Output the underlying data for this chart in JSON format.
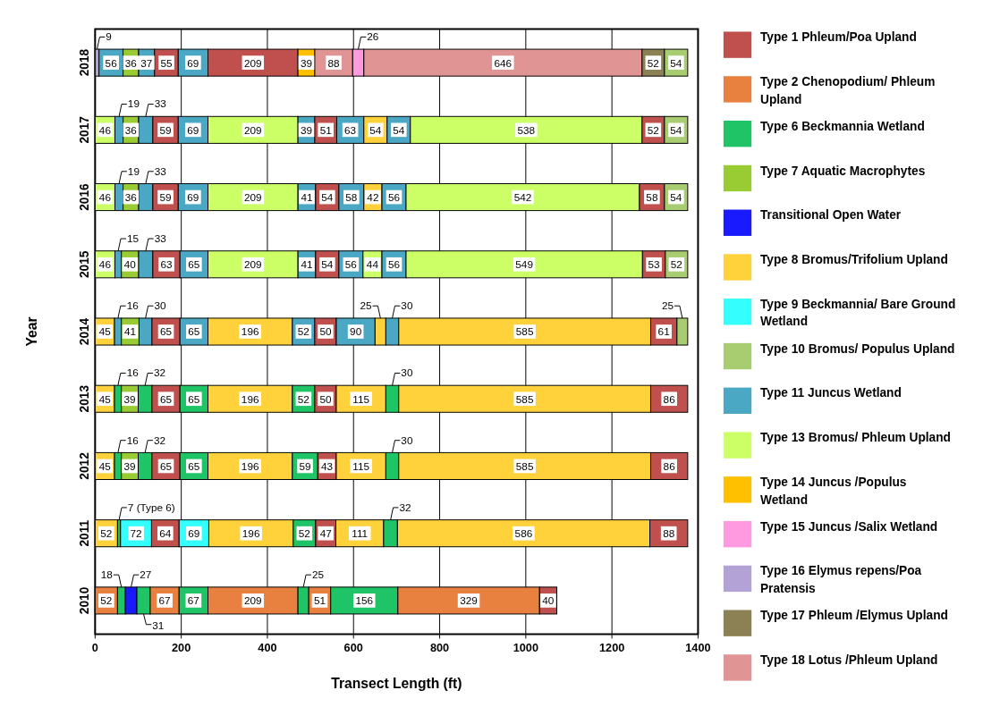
{
  "chart_data": {
    "type": "bar",
    "orientation": "horizontal",
    "xlabel": "Transect Length (ft)",
    "ylabel": "Year",
    "categories": [
      "2018",
      "2017",
      "2016",
      "2015",
      "2014",
      "2013",
      "2012",
      "2011",
      "2010"
    ],
    "xlim": [
      0,
      1400
    ],
    "xticks": [
      0,
      200,
      400,
      600,
      800,
      1000,
      1200,
      1400
    ],
    "grid": "x",
    "legend": "right",
    "data_labels": true,
    "series": [
      {
        "name": "Type 1 Phleum/Poa Upland",
        "color": "#c0504d",
        "values": [
          55,
          59,
          59,
          63,
          65,
          65,
          65,
          64,
          40
        ],
        "base": [
          138,
          134,
          134,
          134,
          132,
          132,
          132,
          131,
          1032
        ]
      },
      {
        "color": "#c0504d",
        "values": [
          209,
          51,
          54,
          54,
          50,
          50,
          43,
          47,
          null
        ],
        "base": [
          262,
          510,
          512,
          512,
          510,
          510,
          517,
          512,
          null
        ]
      },
      {
        "color": "#c0504d",
        "values": [
          null,
          52,
          58,
          53,
          61,
          86,
          86,
          88,
          null
        ],
        "base": [
          null,
          1270,
          1264,
          1271,
          1290,
          1290,
          1290,
          1288,
          null
        ]
      },
      {
        "name": "Type 2 Chenopodium/ Phleum Upland",
        "color": "#e8803f",
        "values": [
          null,
          null,
          null,
          null,
          null,
          null,
          null,
          null,
          52
        ],
        "base": [
          null,
          null,
          null,
          null,
          null,
          null,
          null,
          null,
          0
        ]
      },
      {
        "color": "#e8803f",
        "values": [
          null,
          null,
          null,
          null,
          null,
          null,
          null,
          null,
          67
        ],
        "base": [
          null,
          null,
          null,
          null,
          null,
          null,
          null,
          null,
          128
        ]
      },
      {
        "color": "#e8803f",
        "values": [
          null,
          null,
          null,
          null,
          null,
          null,
          null,
          null,
          209
        ],
        "base": [
          null,
          null,
          null,
          null,
          null,
          null,
          null,
          null,
          262
        ]
      },
      {
        "color": "#e8803f",
        "values": [
          null,
          null,
          null,
          null,
          null,
          null,
          null,
          null,
          51
        ],
        "base": [
          null,
          null,
          null,
          null,
          null,
          null,
          null,
          null,
          496
        ]
      },
      {
        "color": "#e8803f",
        "values": [
          null,
          null,
          null,
          null,
          null,
          null,
          null,
          null,
          329
        ],
        "base": [
          null,
          null,
          null,
          null,
          null,
          null,
          null,
          null,
          703
        ]
      },
      {
        "name": "Type 6 Beckmannia Wetland",
        "color": "#1fc467",
        "values": [
          null,
          null,
          null,
          null,
          null,
          16,
          16,
          7,
          18
        ],
        "base": [
          null,
          null,
          null,
          null,
          null,
          45,
          45,
          52,
          52
        ],
        "value_labels": [
          null,
          null,
          null,
          null,
          null,
          "16",
          "16",
          "7 (Type 6)",
          "18"
        ]
      },
      {
        "color": "#1fc467",
        "values": [
          null,
          null,
          null,
          null,
          null,
          32,
          32,
          52,
          31
        ],
        "base": [
          null,
          null,
          null,
          null,
          null,
          100,
          100,
          460,
          97
        ]
      },
      {
        "color": "#1fc467",
        "values": [
          null,
          null,
          null,
          null,
          null,
          65,
          65,
          32,
          67
        ],
        "base": [
          null,
          null,
          null,
          null,
          null,
          197,
          197,
          670,
          195
        ]
      },
      {
        "color": "#1fc467",
        "values": [
          null,
          null,
          null,
          null,
          null,
          52,
          59,
          null,
          25
        ],
        "base": [
          null,
          null,
          null,
          null,
          null,
          458,
          458,
          null,
          471
        ]
      },
      {
        "color": "#1fc467",
        "values": [
          null,
          null,
          null,
          null,
          null,
          30,
          30,
          null,
          156
        ],
        "base": [
          null,
          null,
          null,
          null,
          null,
          675,
          675,
          null,
          547
        ]
      },
      {
        "name": "Type 7 Aquatic Macrophytes",
        "color": "#99cc33",
        "values": [
          36,
          36,
          36,
          40,
          41,
          39,
          39,
          null,
          null
        ],
        "base": [
          65,
          65,
          65,
          61,
          61,
          61,
          61,
          null,
          null
        ]
      },
      {
        "name": "Transitional Open Water",
        "color": "#1a1aff",
        "values": [
          null,
          null,
          null,
          null,
          null,
          null,
          null,
          null,
          27
        ],
        "base": [
          null,
          null,
          null,
          null,
          null,
          null,
          null,
          null,
          70
        ]
      },
      {
        "name": "Type 8 Bromus/Trifolium Upland",
        "color": "#ffd23c",
        "values": [
          null,
          54,
          42,
          null,
          45,
          45,
          45,
          52,
          null
        ],
        "base": [
          null,
          624,
          624,
          null,
          0,
          0,
          0,
          0,
          null
        ]
      },
      {
        "color": "#ffd23c",
        "values": [
          null,
          null,
          null,
          null,
          196,
          196,
          196,
          196,
          null
        ],
        "base": [
          null,
          null,
          null,
          null,
          262,
          262,
          262,
          264,
          null
        ]
      },
      {
        "color": "#ffd23c",
        "values": [
          null,
          null,
          null,
          null,
          25,
          115,
          115,
          111,
          null
        ],
        "base": [
          null,
          null,
          null,
          null,
          650,
          560,
          560,
          559,
          null
        ]
      },
      {
        "color": "#ffd23c",
        "values": [
          null,
          null,
          null,
          null,
          585,
          585,
          585,
          586,
          null
        ],
        "base": [
          null,
          null,
          null,
          null,
          705,
          705,
          705,
          702,
          null
        ]
      },
      {
        "name": "Type 9 Beckmannia/ Bare Ground Wetland",
        "color": "#33ffff",
        "values": [
          null,
          null,
          null,
          null,
          null,
          null,
          null,
          72,
          null
        ],
        "base": [
          null,
          null,
          null,
          null,
          null,
          null,
          null,
          59,
          null
        ]
      },
      {
        "color": "#33ffff",
        "values": [
          null,
          null,
          null,
          null,
          null,
          null,
          null,
          69,
          null
        ],
        "base": [
          null,
          null,
          null,
          null,
          null,
          null,
          null,
          195,
          null
        ]
      },
      {
        "name": "Type 10 Bromus/ Populus Upland",
        "color": "#a8cc70",
        "values": [
          54,
          54,
          54,
          52,
          25,
          null,
          null,
          null,
          null
        ],
        "base": [
          1322,
          1322,
          1322,
          1324,
          1351,
          null,
          null,
          null,
          null
        ]
      },
      {
        "name": "Type 11 Juncus Wetland",
        "color": "#4aa8c4",
        "values": [
          56,
          19,
          19,
          15,
          16,
          null,
          null,
          null,
          null
        ],
        "base": [
          9,
          46,
          46,
          46,
          45,
          null,
          null,
          null,
          null
        ]
      },
      {
        "color": "#4aa8c4",
        "values": [
          37,
          33,
          33,
          33,
          30,
          null,
          null,
          null,
          null
        ],
        "base": [
          101,
          101,
          101,
          101,
          102,
          null,
          null,
          null,
          null
        ]
      },
      {
        "color": "#4aa8c4",
        "values": [
          69,
          69,
          69,
          65,
          65,
          null,
          null,
          null,
          null
        ],
        "base": [
          193,
          193,
          193,
          197,
          197,
          null,
          null,
          null,
          null
        ]
      },
      {
        "color": "#4aa8c4",
        "values": [
          null,
          39,
          41,
          41,
          52,
          null,
          null,
          null,
          null
        ],
        "base": [
          null,
          471,
          471,
          471,
          458,
          null,
          null,
          null,
          null
        ]
      },
      {
        "color": "#4aa8c4",
        "values": [
          null,
          63,
          58,
          56,
          90,
          null,
          null,
          null,
          null
        ],
        "base": [
          null,
          561,
          566,
          566,
          560,
          null,
          null,
          null,
          null
        ]
      },
      {
        "color": "#4aa8c4",
        "values": [
          null,
          54,
          56,
          56,
          30,
          null,
          null,
          null,
          null
        ],
        "base": [
          null,
          678,
          666,
          666,
          675,
          null,
          null,
          null,
          null
        ]
      },
      {
        "name": "Type 13 Bromus/ Phleum Upland",
        "color": "#ccff66",
        "values": [
          null,
          46,
          46,
          46,
          null,
          null,
          null,
          null,
          null
        ],
        "base": [
          null,
          0,
          0,
          0,
          null,
          null,
          null,
          null,
          null
        ]
      },
      {
        "color": "#ccff66",
        "values": [
          null,
          209,
          209,
          209,
          null,
          null,
          null,
          null,
          null
        ],
        "base": [
          null,
          262,
          262,
          262,
          null,
          null,
          null,
          null,
          null
        ]
      },
      {
        "color": "#ccff66",
        "values": [
          null,
          538,
          542,
          44,
          null,
          null,
          null,
          null,
          null
        ],
        "base": [
          null,
          732,
          722,
          622,
          null,
          null,
          null,
          null,
          null
        ]
      },
      {
        "color": "#ccff66",
        "values": [
          null,
          null,
          null,
          549,
          null,
          null,
          null,
          null,
          null
        ],
        "base": [
          null,
          null,
          null,
          722,
          null,
          null,
          null,
          null,
          null
        ]
      },
      {
        "name": "Type 14 Juncus /Populus Wetland",
        "color": "#ffc000",
        "values": [
          39,
          null,
          null,
          null,
          null,
          null,
          null,
          null,
          null
        ],
        "base": [
          471,
          null,
          null,
          null,
          null,
          null,
          null,
          null,
          null
        ]
      },
      {
        "name": "Type 15 Juncus /Salix Wetland",
        "color": "#ff99e0",
        "values": [
          26,
          null,
          null,
          null,
          null,
          null,
          null,
          null,
          null
        ],
        "base": [
          598,
          null,
          null,
          null,
          null,
          null,
          null,
          null,
          null
        ]
      },
      {
        "name": "Type 16 Elymus repens/Poa Pratensis",
        "color": "#b3a2d6",
        "values": [
          9,
          null,
          null,
          null,
          null,
          null,
          null,
          null,
          null
        ],
        "base": [
          0,
          null,
          null,
          null,
          null,
          null,
          null,
          null,
          null
        ]
      },
      {
        "name": "Type 17 Phleum /Elymus Upland",
        "color": "#8c8155",
        "values": [
          52,
          null,
          null,
          null,
          null,
          null,
          null,
          null,
          null
        ],
        "base": [
          1270,
          null,
          null,
          null,
          null,
          null,
          null,
          null,
          null
        ]
      },
      {
        "name": "Type 18 Lotus /Phleum Upland",
        "color": "#e09494",
        "values": [
          88,
          null,
          null,
          null,
          null,
          null,
          null,
          null,
          null
        ],
        "base": [
          510,
          null,
          null,
          null,
          null,
          null,
          null,
          null,
          null
        ]
      },
      {
        "color": "#e09494",
        "values": [
          646,
          null,
          null,
          null,
          null,
          null,
          null,
          null,
          null
        ],
        "base": [
          624,
          null,
          null,
          null,
          null,
          null,
          null,
          null,
          null
        ]
      }
    ]
  }
}
